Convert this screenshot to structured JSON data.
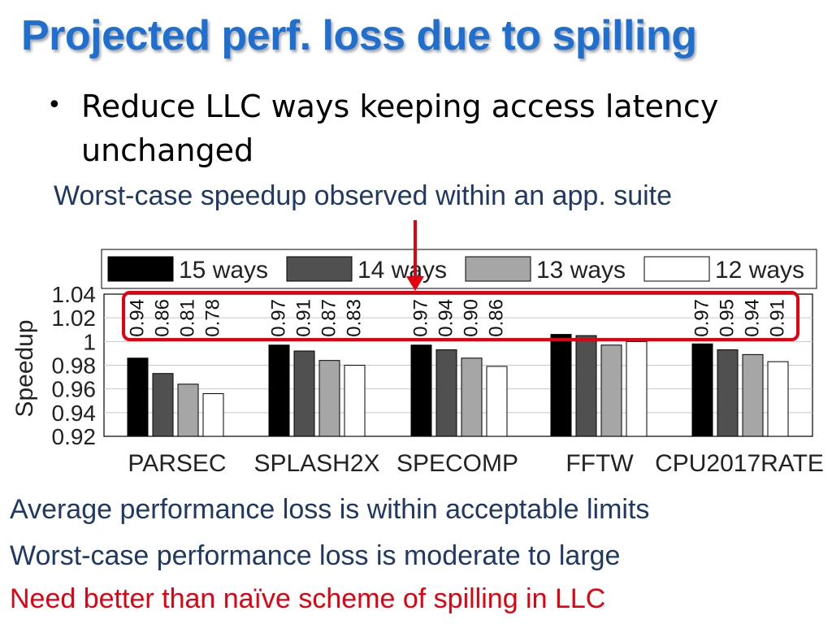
{
  "slide": {
    "title": "Projected perf. loss due to spilling",
    "bullet": "Reduce LLC ways keeping access latency unchanged",
    "note": "Worst-case speedup observed within an app. suite",
    "footer": [
      "Average performance loss is within acceptable limits",
      "Worst-case performance loss is moderate to large",
      "Need better than naïve scheme of spilling in LLC"
    ],
    "colors": {
      "title": "#1f6fd0",
      "note": "#1f3864",
      "highlight": "#e4000f"
    }
  },
  "chart_data": {
    "type": "bar",
    "ylabel": "Speedup",
    "xlabel": "",
    "ylim": [
      0.92,
      1.04
    ],
    "yticks": [
      "1.04",
      "1.02",
      "1",
      "0.98",
      "0.96",
      "0.94",
      "0.92"
    ],
    "grid": true,
    "legend_position": "top",
    "categories": [
      "PARSEC",
      "SPLASH2X",
      "SPECOMP",
      "FFTW",
      "CPU2017RATE"
    ],
    "series": [
      {
        "name": "15 ways",
        "color": "#000000",
        "values": [
          0.986,
          0.997,
          0.997,
          1.006,
          0.998
        ]
      },
      {
        "name": "14 ways",
        "color": "#505050",
        "values": [
          0.973,
          0.992,
          0.993,
          1.005,
          0.993
        ]
      },
      {
        "name": "13 ways",
        "color": "#a6a6a6",
        "values": [
          0.964,
          0.984,
          0.986,
          0.997,
          0.989
        ]
      },
      {
        "name": "12 ways",
        "color": "#ffffff",
        "values": [
          0.956,
          0.98,
          0.979,
          1.0,
          0.983
        ]
      }
    ],
    "worst_case_labels": [
      [
        "0.94",
        "0.86",
        "0.81",
        "0.78"
      ],
      [
        "0.97",
        "0.91",
        "0.87",
        "0.83"
      ],
      [
        "0.97",
        "0.94",
        "0.90",
        "0.86"
      ],
      [
        "",
        "",
        "",
        ""
      ],
      [
        "0.97",
        "0.95",
        "0.94",
        "0.91"
      ]
    ]
  }
}
